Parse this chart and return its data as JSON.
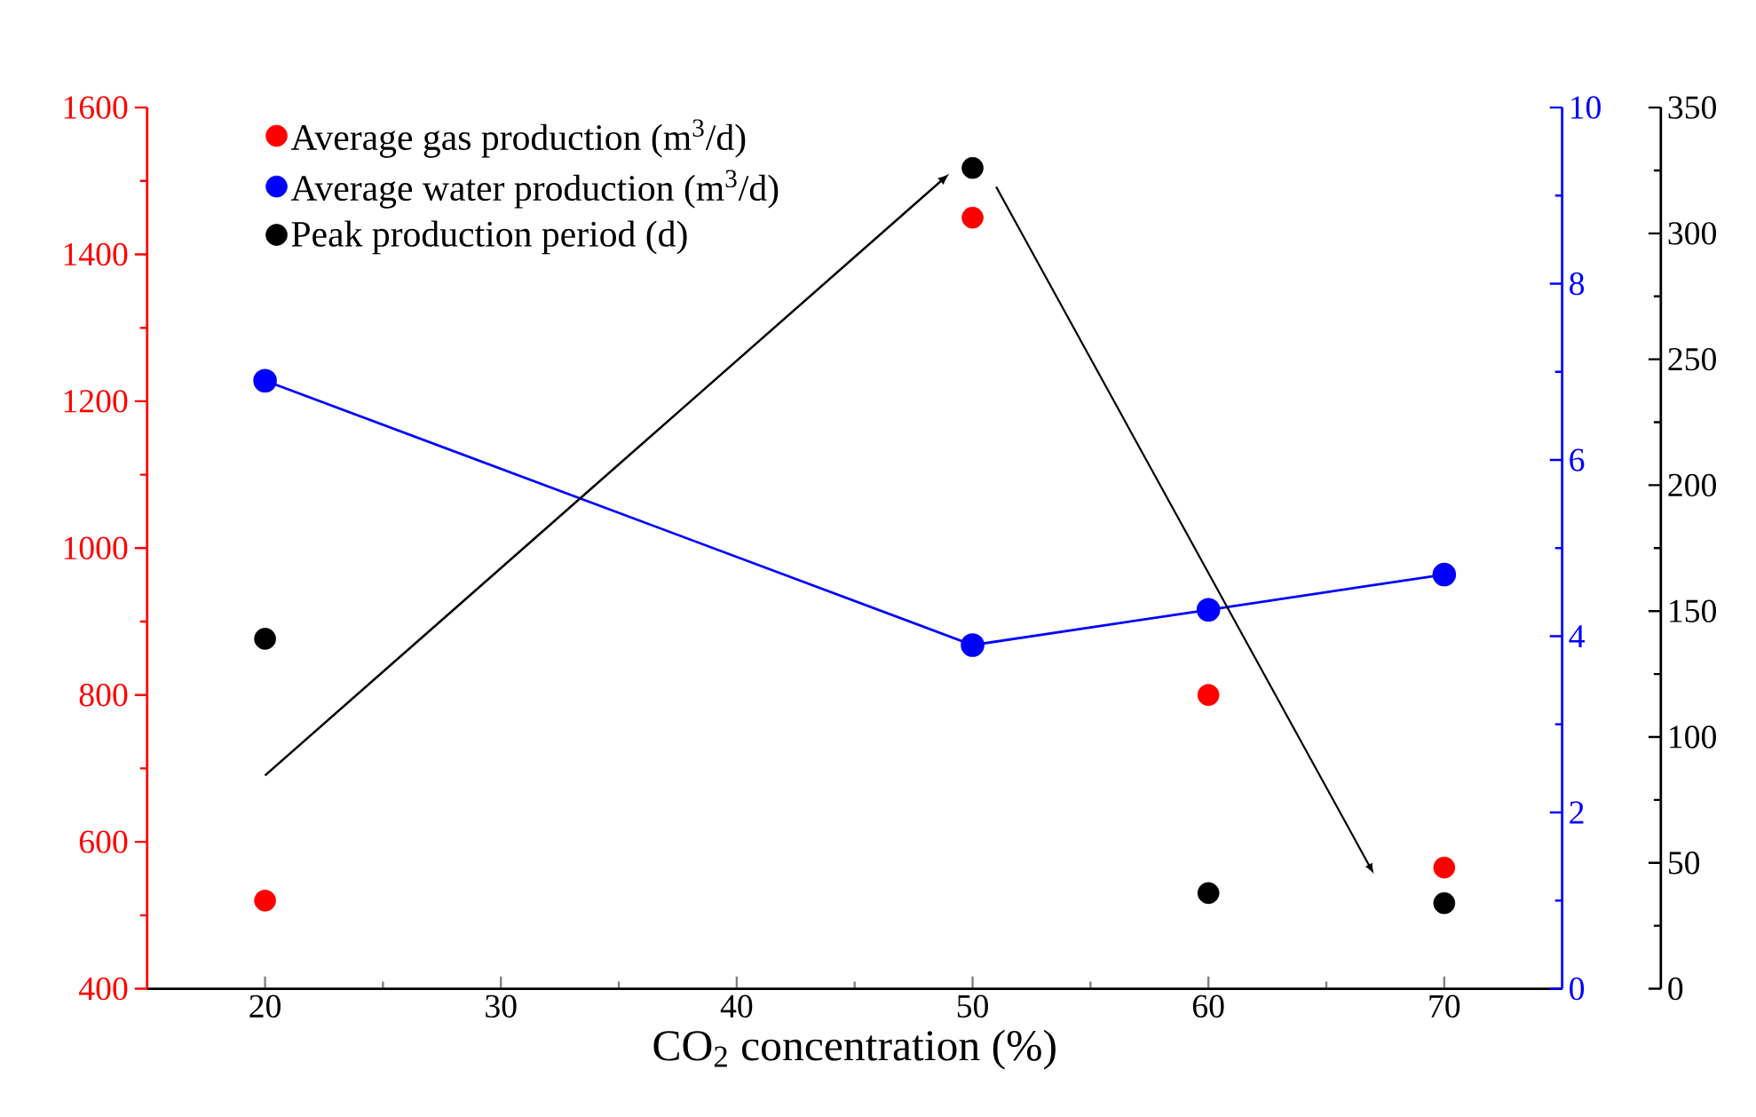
{
  "chart_data": {
    "type": "scatter",
    "xlabel": "CO$_{2}$ concentration (%)",
    "x": [
      20,
      50,
      60,
      70
    ],
    "xlim": [
      15,
      75
    ],
    "xticks": [
      20,
      30,
      40,
      50,
      60,
      70
    ],
    "ylim": [
      400,
      1600
    ],
    "yticks": [
      400,
      600,
      800,
      1000,
      1200,
      1400,
      1600
    ],
    "y2lim": [
      0,
      10
    ],
    "y2ticks": [
      0,
      2,
      4,
      6,
      8,
      10
    ],
    "y3lim": [
      0,
      350
    ],
    "y3ticks": [
      0,
      50,
      100,
      150,
      200,
      250,
      300,
      350
    ],
    "legend": "top left",
    "marker": "circle",
    "series": [
      {
        "name": "Average gas production (m$^{3}$/d)",
        "color": "#ff0000",
        "values": [
          520,
          1450,
          800,
          565
        ]
      },
      {
        "name": "Average water production (m$^{3}$/d)",
        "type": "line",
        "axis": "y2",
        "color": "#0000ff",
        "values": [
          6.9,
          3.9,
          4.3,
          4.7
        ]
      },
      {
        "name": "Peak production period (d)",
        "axis": "y3",
        "color": "#000000",
        "values": [
          139,
          326,
          38,
          34
        ]
      }
    ]
  }
}
